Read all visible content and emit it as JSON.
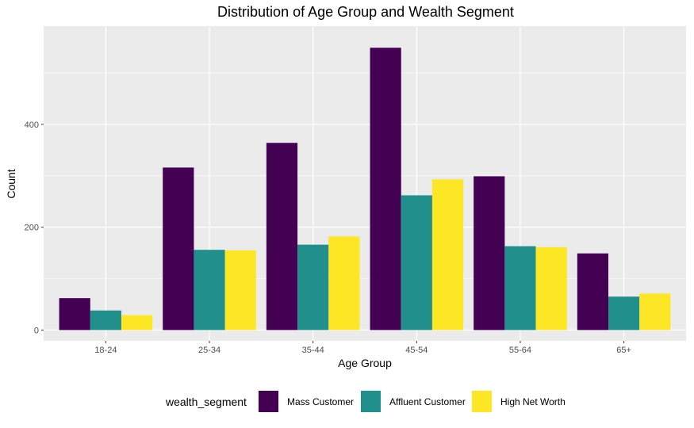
{
  "chart_data": {
    "type": "bar",
    "title": "Distribution of Age Group and Wealth Segment",
    "xlabel": "Age Group",
    "ylabel": "Count",
    "categories": [
      "18-24",
      "25-34",
      "35-44",
      "45-54",
      "55-64",
      "65+"
    ],
    "series": [
      {
        "name": "Mass Customer",
        "color": "#440154",
        "values": [
          62,
          316,
          364,
          549,
          299,
          149
        ]
      },
      {
        "name": "Affluent Customer",
        "color": "#21908c",
        "values": [
          38,
          156,
          166,
          262,
          163,
          65
        ]
      },
      {
        "name": "High Net Worth",
        "color": "#fde725",
        "values": [
          29,
          155,
          182,
          293,
          161,
          71
        ]
      }
    ],
    "ylim": [
      -21,
      591
    ],
    "yticks": [
      0,
      200,
      400
    ],
    "grid": true,
    "legend": {
      "title": "wealth_segment",
      "position": "bottom"
    },
    "panel_background": "#ebebeb",
    "gridline_color": "#ffffff"
  }
}
